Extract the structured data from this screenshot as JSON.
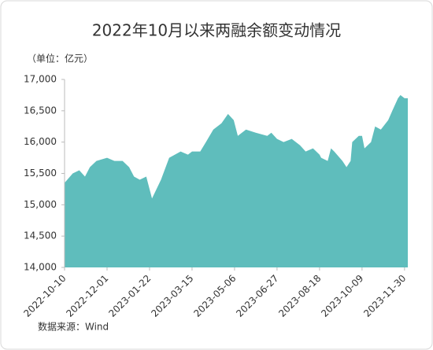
{
  "chart_data": {
    "type": "area",
    "title": "2022年10月以来两融余额变动情况",
    "unit_label": "（单位：亿元）",
    "source": "数据来源：Wind",
    "color": "#5fbdbc",
    "x": [
      "2022-10-10",
      "2022-10-20",
      "2022-10-28",
      "2022-11-04",
      "2022-11-10",
      "2022-11-18",
      "2022-12-01",
      "2022-12-10",
      "2022-12-20",
      "2022-12-28",
      "2023-01-03",
      "2023-01-10",
      "2023-01-18",
      "2023-01-20",
      "2023-01-25",
      "2023-02-05",
      "2023-02-15",
      "2023-03-01",
      "2023-03-10",
      "2023-03-15",
      "2023-03-25",
      "2023-04-01",
      "2023-04-10",
      "2023-04-20",
      "2023-04-28",
      "2023-05-05",
      "2023-05-10",
      "2023-05-20",
      "2023-06-01",
      "2023-06-15",
      "2023-06-20",
      "2023-06-27",
      "2023-07-05",
      "2023-07-15",
      "2023-07-25",
      "2023-08-01",
      "2023-08-10",
      "2023-08-18",
      "2023-08-20",
      "2023-08-28",
      "2023-09-01",
      "2023-09-05",
      "2023-09-15",
      "2023-09-20",
      "2023-09-25",
      "2023-09-27",
      "2023-10-05",
      "2023-10-09",
      "2023-10-12",
      "2023-10-20",
      "2023-10-25",
      "2023-11-01",
      "2023-11-10",
      "2023-11-15",
      "2023-11-22",
      "2023-11-25",
      "2023-11-30",
      "2023-12-04"
    ],
    "values": [
      15350,
      15500,
      15550,
      15450,
      15600,
      15700,
      15750,
      15700,
      15700,
      15600,
      15450,
      15400,
      15450,
      15350,
      15100,
      15400,
      15750,
      15850,
      15800,
      15850,
      15850,
      16000,
      16200,
      16300,
      16450,
      16350,
      16100,
      16200,
      16150,
      16100,
      16150,
      16050,
      16000,
      16050,
      15950,
      15850,
      15900,
      15800,
      15750,
      15700,
      15900,
      15850,
      15700,
      15600,
      15700,
      16000,
      16100,
      16100,
      15900,
      16000,
      16250,
      16200,
      16350,
      16500,
      16700,
      16750,
      16700,
      16700
    ],
    "xlim": [
      "2022-10-10",
      "2023-12-04"
    ],
    "xticks": [
      "2022-10-10",
      "2022-12-01",
      "2023-01-22",
      "2023-03-15",
      "2023-05-06",
      "2023-06-27",
      "2023-08-18",
      "2023-10-09",
      "2023-11-30"
    ],
    "ylim": [
      14000,
      17000
    ],
    "yticks": [
      {
        "value": 14000,
        "label": "14,000"
      },
      {
        "value": 14500,
        "label": "14,500"
      },
      {
        "value": 15000,
        "label": "15,000"
      },
      {
        "value": 15500,
        "label": "15,500"
      },
      {
        "value": 16000,
        "label": "16,000"
      },
      {
        "value": 16500,
        "label": "16,500"
      },
      {
        "value": 17000,
        "label": "17,000"
      }
    ]
  }
}
